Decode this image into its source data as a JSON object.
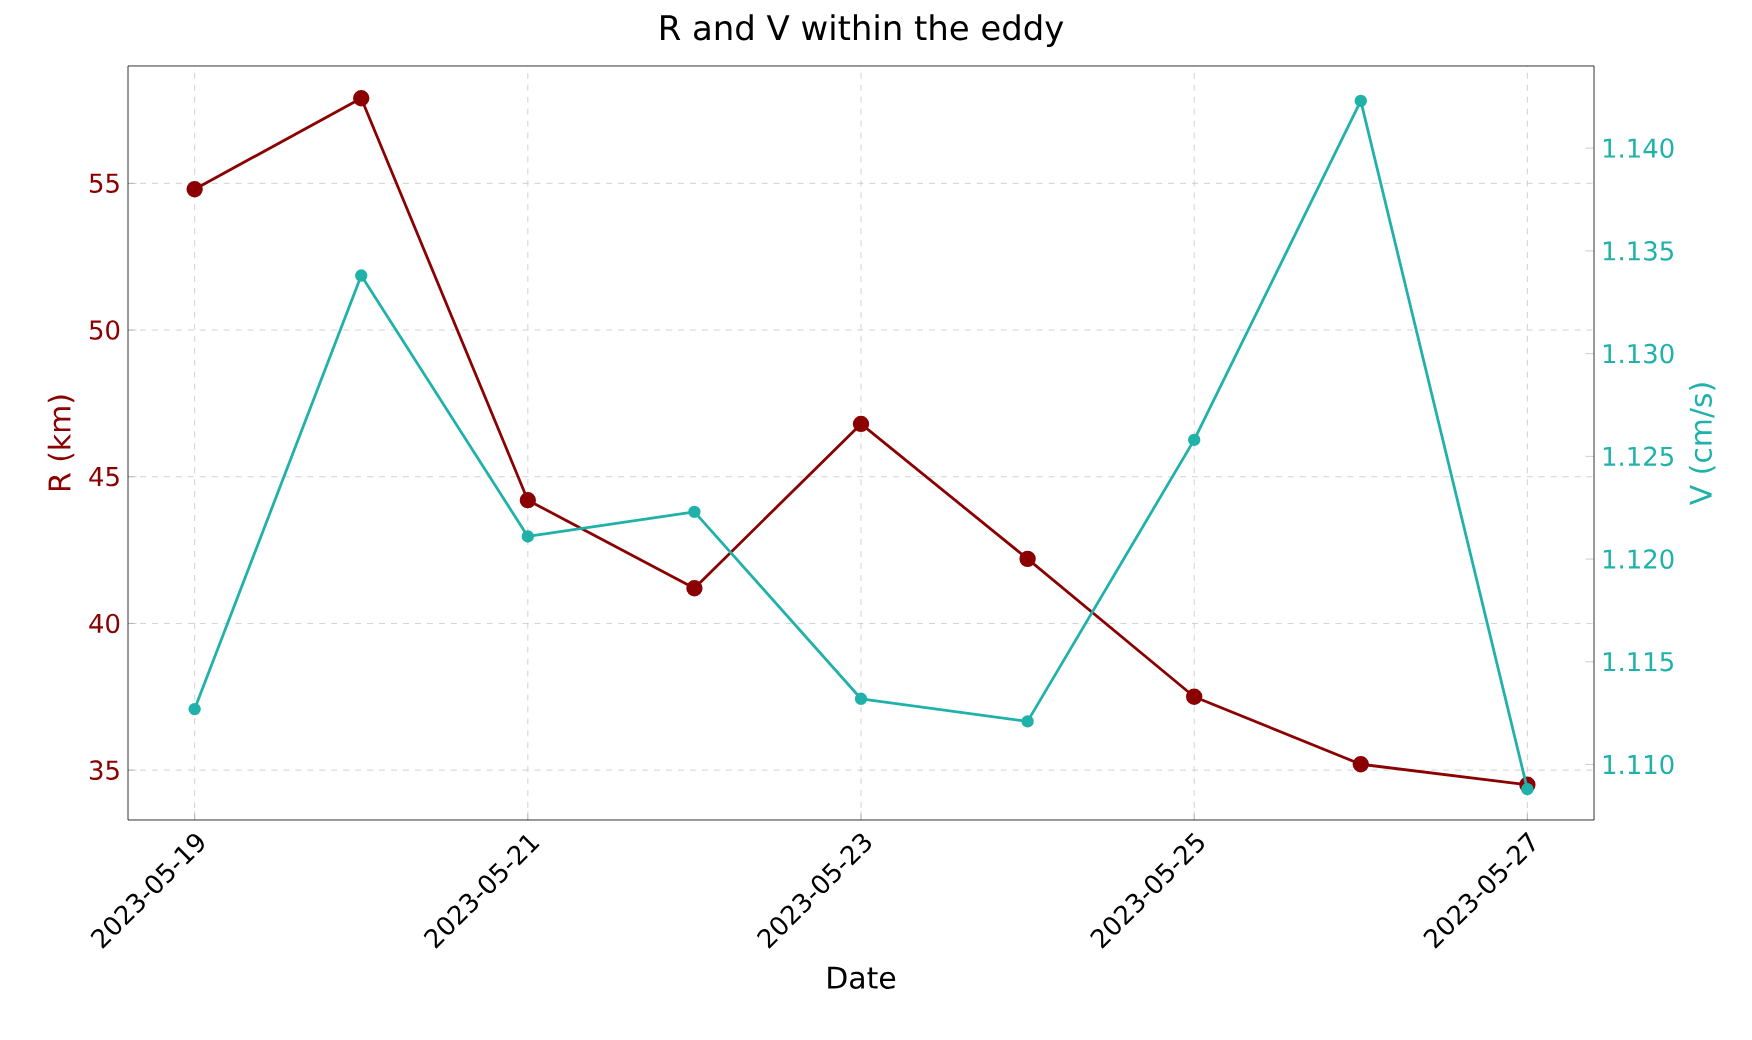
{
  "chart_data": {
    "type": "line",
    "title": "R and V within the eddy",
    "xlabel": "Date",
    "ylabel": "R (km)",
    "y2label": "V (cm/s)",
    "x": [
      "2023-05-19",
      "2023-05-20",
      "2023-05-21",
      "2023-05-22",
      "2023-05-23",
      "2023-05-24",
      "2023-05-25",
      "2023-05-26",
      "2023-05-27"
    ],
    "series": [
      {
        "color": "#8b0000",
        "values": [
          54.8,
          57.9,
          44.2,
          41.2,
          46.8,
          42.2,
          37.5,
          35.2,
          34.5
        ]
      },
      {
        "color": "#20b2aa",
        "axis": "y2",
        "values": [
          1.1127,
          1.1338,
          1.1211,
          1.1223,
          1.1132,
          1.1121,
          1.1258,
          1.1423,
          1.1088
        ]
      }
    ],
    "xlim": [
      "2023-05-18T14:24",
      "2023-05-27T09:36"
    ],
    "xticks": [
      {
        "value": "2023-05-19",
        "label": "2023-05-19"
      },
      {
        "value": "2023-05-21",
        "label": "2023-05-21"
      },
      {
        "value": "2023-05-23",
        "label": "2023-05-23"
      },
      {
        "value": "2023-05-25",
        "label": "2023-05-25"
      },
      {
        "value": "2023-05-27",
        "label": "2023-05-27"
      }
    ],
    "ylim": [
      33.3,
      59.0
    ],
    "yticks": [
      35,
      40,
      45,
      50,
      55
    ],
    "y2lim": [
      1.1073,
      1.144
    ],
    "y2ticks": [
      {
        "value": 1.11,
        "label": "1.110"
      },
      {
        "value": 1.115,
        "label": "1.115"
      },
      {
        "value": 1.12,
        "label": "1.120"
      },
      {
        "value": 1.125,
        "label": "1.125"
      },
      {
        "value": 1.13,
        "label": "1.130"
      },
      {
        "value": 1.135,
        "label": "1.135"
      },
      {
        "value": 1.14,
        "label": "1.140"
      }
    ],
    "grid": true,
    "marker": "circle",
    "line_style": "solid"
  }
}
